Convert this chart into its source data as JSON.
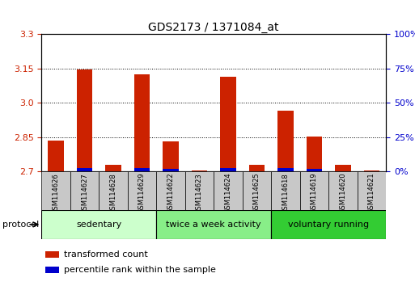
{
  "title": "GDS2173 / 1371084_at",
  "samples": [
    "GSM114626",
    "GSM114627",
    "GSM114628",
    "GSM114629",
    "GSM114622",
    "GSM114623",
    "GSM114624",
    "GSM114625",
    "GSM114618",
    "GSM114619",
    "GSM114620",
    "GSM114621"
  ],
  "red_values": [
    2.835,
    3.145,
    2.73,
    3.125,
    2.832,
    2.706,
    3.115,
    2.73,
    2.965,
    2.855,
    2.73,
    2.706
  ],
  "blue_values": [
    2.703,
    2.715,
    2.703,
    2.715,
    2.712,
    2.703,
    2.715,
    2.703,
    2.715,
    2.712,
    2.703,
    2.703
  ],
  "ymin": 2.7,
  "ymax": 3.3,
  "yticks_left": [
    2.7,
    2.85,
    3.0,
    3.15,
    3.3
  ],
  "yticks_right": [
    0,
    25,
    50,
    75,
    100
  ],
  "yticks_right_labels": [
    "0%",
    "25%",
    "50%",
    "75%",
    "100%"
  ],
  "red_color": "#cc2200",
  "blue_color": "#0000cc",
  "bar_width": 0.55,
  "protocol_groups": [
    {
      "label": "sedentary",
      "start": 0,
      "end": 4,
      "color": "#ccffcc"
    },
    {
      "label": "twice a week activity",
      "start": 4,
      "end": 8,
      "color": "#88ee88"
    },
    {
      "label": "voluntary running",
      "start": 8,
      "end": 12,
      "color": "#33cc33"
    }
  ],
  "legend_red_label": "transformed count",
  "legend_blue_label": "percentile rank within the sample",
  "protocol_label": "protocol",
  "tick_label_color_left": "#cc2200",
  "tick_label_color_right": "#0000cc",
  "xlabel_bg_color": "#c8c8c8"
}
